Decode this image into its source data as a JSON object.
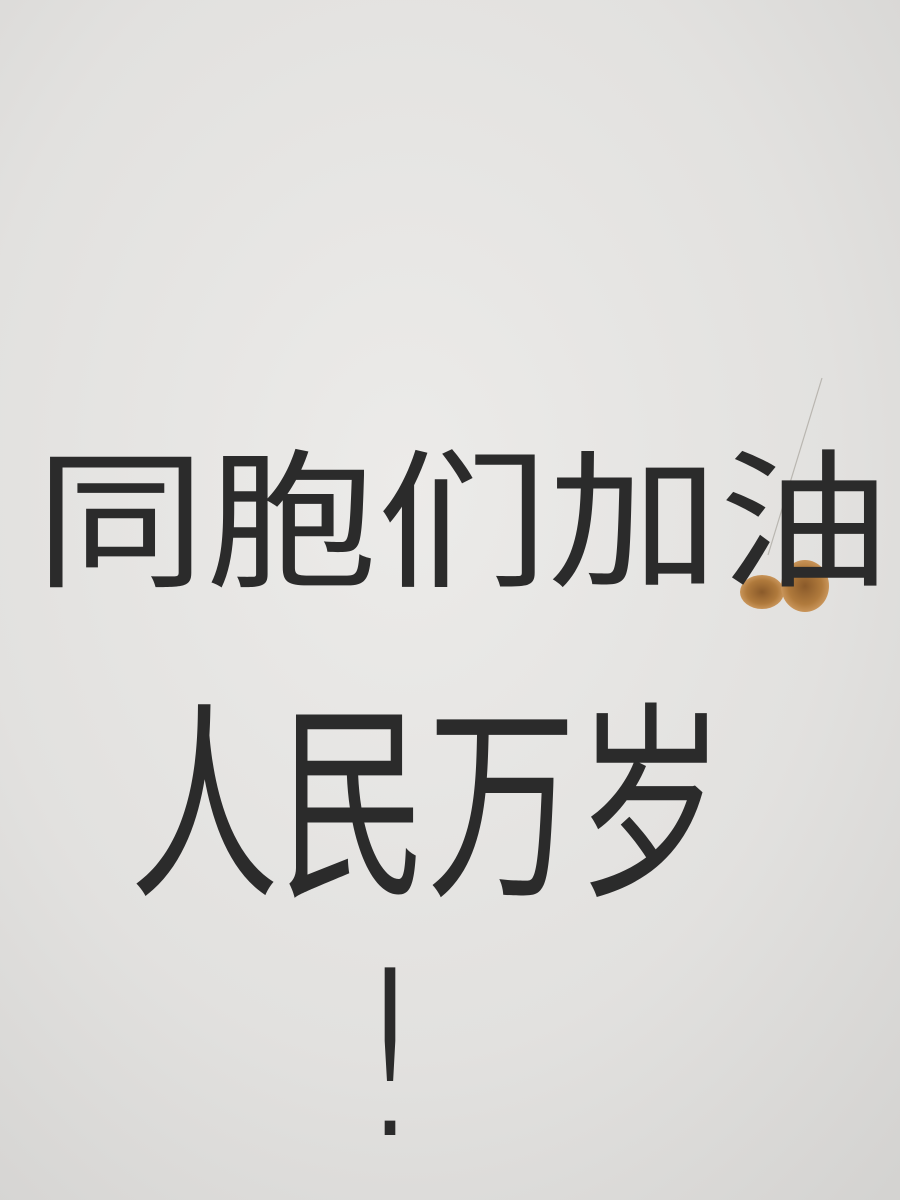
{
  "wall_text": {
    "lines": [
      "同胞们加油",
      "人民万岁",
      "!"
    ]
  }
}
